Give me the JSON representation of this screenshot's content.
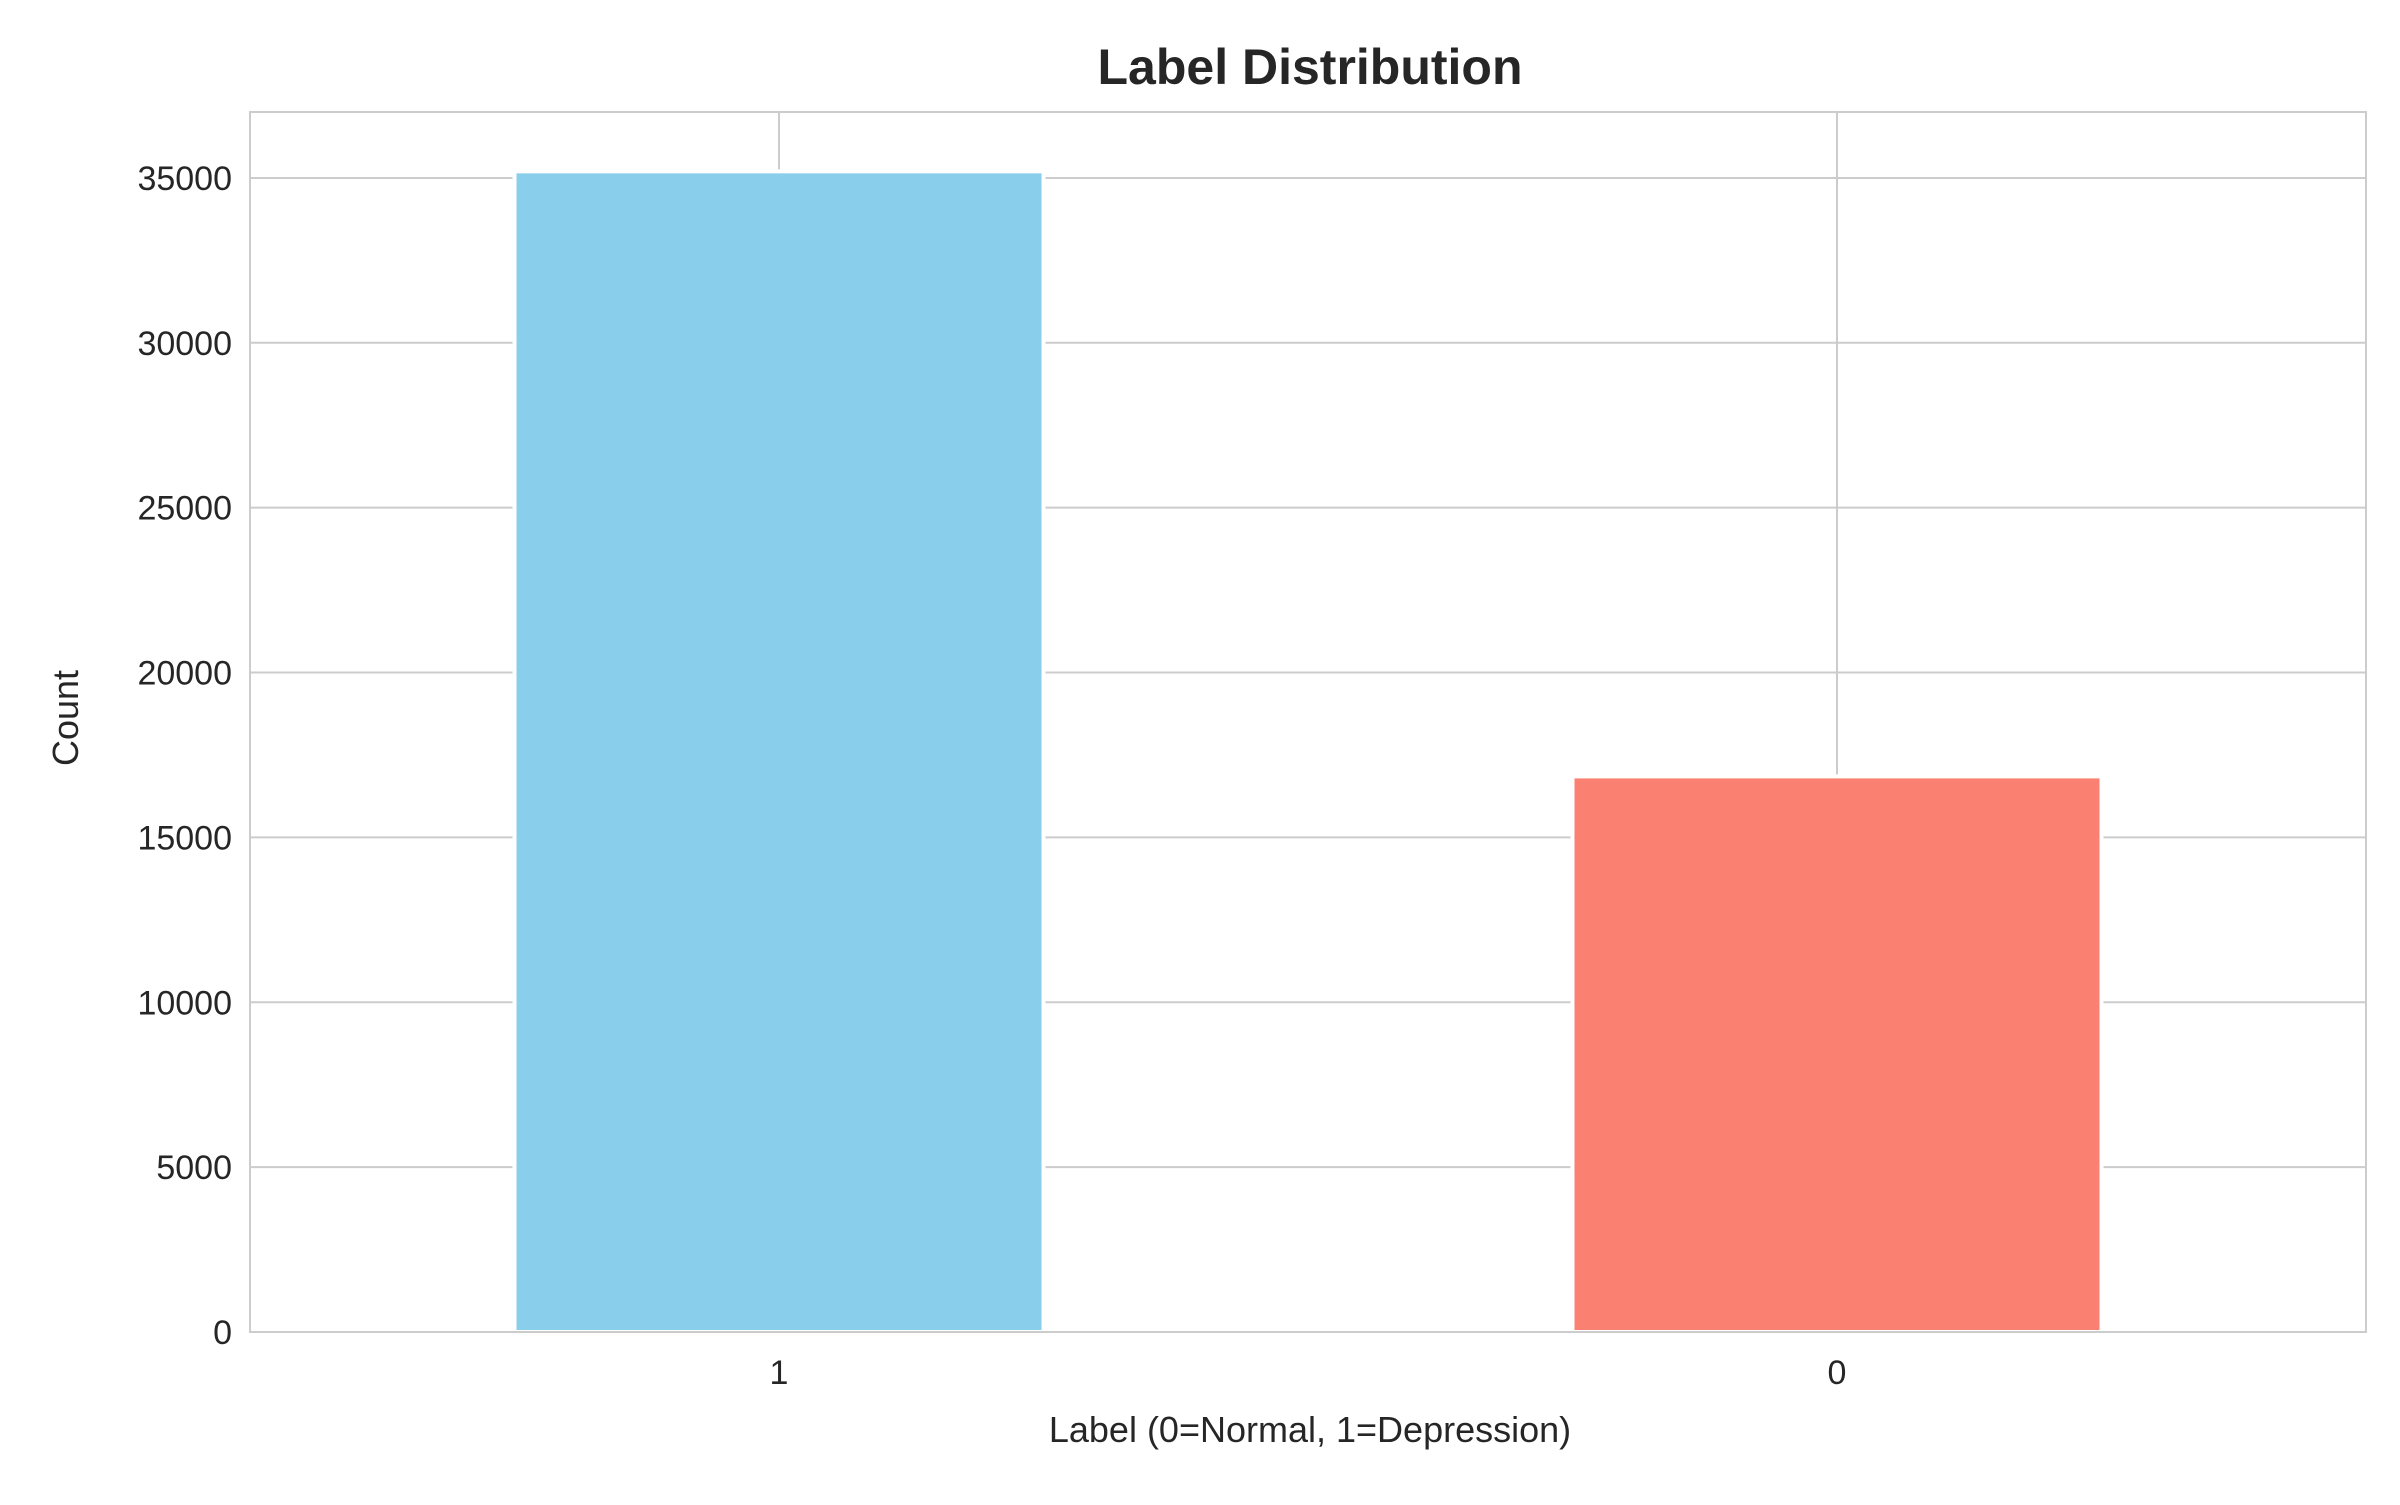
{
  "chart_data": {
    "type": "bar",
    "title": "Label Distribution",
    "xlabel": "Label (0=Normal, 1=Depression)",
    "ylabel": "Count",
    "categories": [
      "1",
      "0"
    ],
    "values": [
      35200,
      16850
    ],
    "ylim": [
      0,
      37000
    ],
    "yticks": [
      0,
      5000,
      10000,
      15000,
      20000,
      25000,
      30000,
      35000
    ],
    "grid": true,
    "legend": "none",
    "colors": [
      "#89ceea",
      "#fa8072"
    ],
    "grid_color": "#cccccc",
    "axes_edge_color": "#cccccc",
    "text_color": "#262626"
  }
}
